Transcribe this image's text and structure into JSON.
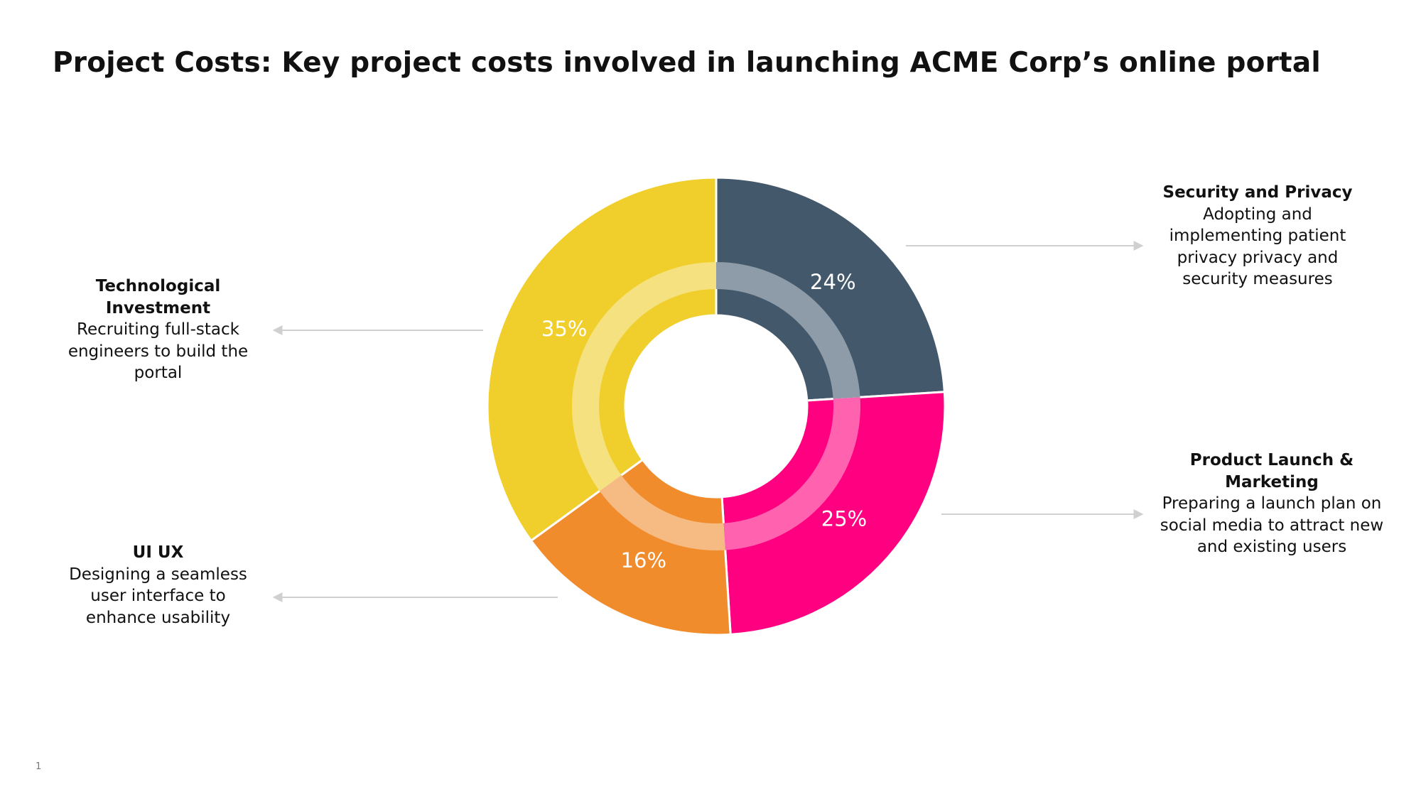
{
  "title": "Project Costs: Key project costs involved in launching ACME Corp’s online portal",
  "page_number": "1",
  "chart_data": {
    "type": "pie",
    "variant": "donut",
    "start_angle_deg": 0,
    "direction": "clockwise",
    "slices": [
      {
        "key": "security",
        "label": "24%",
        "value": 24,
        "color": "#43596b",
        "inner_color": "#8d9ca8"
      },
      {
        "key": "marketing",
        "label": "25%",
        "value": 25,
        "color": "#ff0080",
        "inner_color": "#ff62ae"
      },
      {
        "key": "uiux",
        "label": "16%",
        "value": 16,
        "color": "#f18c2d",
        "inner_color": "#f6bb83"
      },
      {
        "key": "tech",
        "label": "35%",
        "value": 35,
        "color": "#f0cf2c",
        "inner_color": "#f5e17f"
      }
    ],
    "legend": "callouts"
  },
  "callouts": {
    "tech": {
      "heading": "Technological Investment",
      "body": "Recruiting full-stack engineers to build the portal"
    },
    "uiux": {
      "heading": "UI UX",
      "body": "Designing a seamless user interface to enhance usability"
    },
    "security": {
      "heading": "Security and Privacy",
      "body": "Adopting and implementing patient privacy privacy and security measures"
    },
    "marketing": {
      "heading": "Product Launch & Marketing",
      "body": "Preparing a launch plan on social media to attract new and existing users"
    }
  },
  "colors": {
    "connector": "#d0d0d0",
    "separator": "#ffffff"
  }
}
